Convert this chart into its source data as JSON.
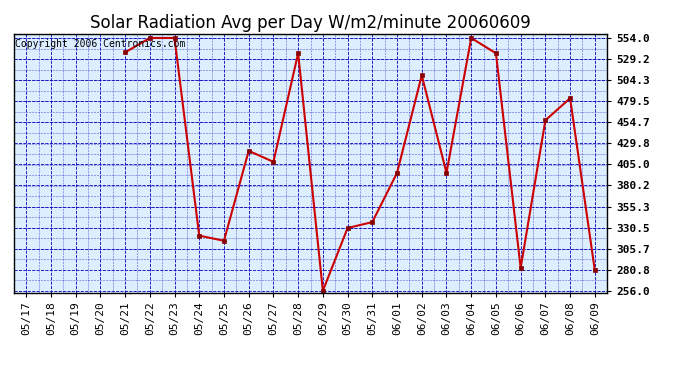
{
  "title": "Solar Radiation Avg per Day W/m2/minute 20060609",
  "copyright_text": "Copyright 2006 Centronics.com",
  "x_labels": [
    "05/17",
    "05/18",
    "05/19",
    "05/20",
    "05/21",
    "05/22",
    "05/23",
    "05/24",
    "05/25",
    "05/26",
    "05/27",
    "05/28",
    "05/29",
    "05/30",
    "05/31",
    "06/01",
    "06/02",
    "06/03",
    "06/04",
    "06/05",
    "06/06",
    "06/07",
    "06/08",
    "06/09"
  ],
  "y_values": [
    null,
    null,
    null,
    null,
    537.0,
    554.0,
    554.0,
    321.0,
    315.0,
    421.0,
    408.0,
    536.0,
    256.0,
    330.0,
    337.0,
    395.0,
    510.0,
    395.0,
    554.0,
    536.0,
    283.0,
    457.0,
    483.0,
    280.0
  ],
  "y_min": 256.0,
  "y_max": 554.0,
  "y_ticks": [
    256.0,
    280.8,
    305.7,
    330.5,
    355.3,
    380.2,
    405.0,
    429.8,
    454.7,
    479.5,
    504.3,
    529.2,
    554.0
  ],
  "y_tick_labels": [
    "256.0",
    "280.8",
    "305.7",
    "330.5",
    "355.3",
    "380.2",
    "405.0",
    "429.8",
    "454.7",
    "479.5",
    "504.3",
    "529.2",
    "554.0"
  ],
  "line_color": "#cc0000",
  "marker_color": "#880000",
  "bg_color": "#ffffff",
  "plot_bg_color": "#ddeeff",
  "grid_color": "#0000bb",
  "title_fontsize": 12,
  "tick_label_fontsize": 8,
  "copyright_fontsize": 7
}
